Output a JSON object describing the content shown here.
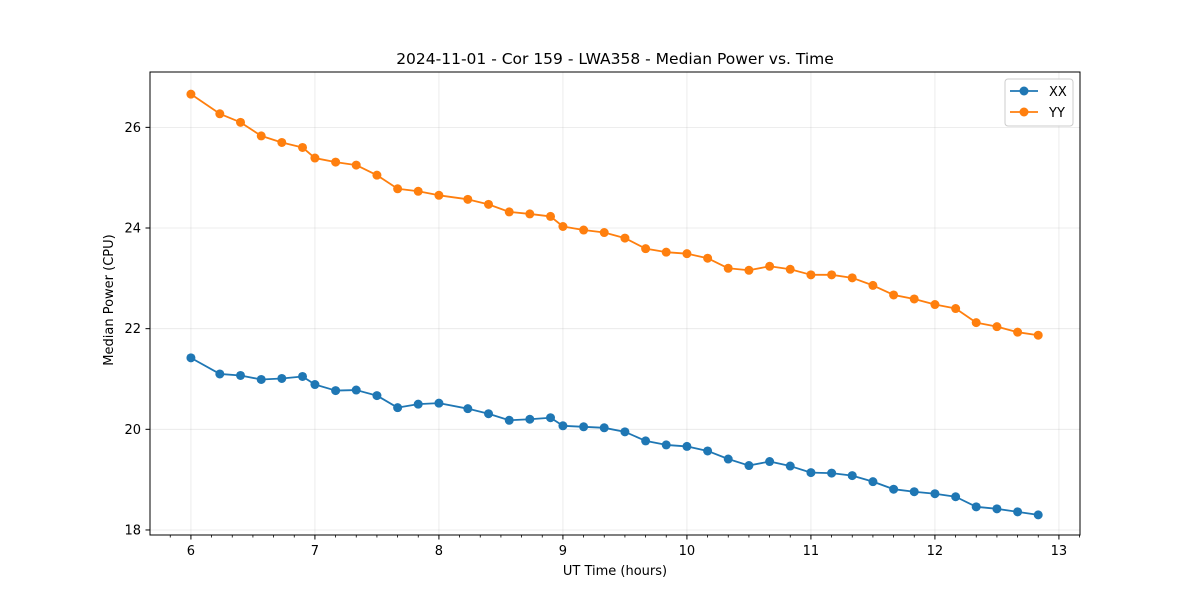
{
  "chart_data": {
    "type": "line",
    "title": "2024-11-01 - Cor 159 - LWA358 - Median Power vs. Time",
    "xlabel": "UT Time (hours)",
    "ylabel": "Median Power (CPU)",
    "xlim": [
      5.67,
      13.17
    ],
    "ylim": [
      17.9,
      27.1
    ],
    "xticks": [
      6,
      7,
      8,
      9,
      10,
      11,
      12,
      13
    ],
    "xtick_labels": [
      "6",
      "7",
      "8",
      "9",
      "10",
      "11",
      "12",
      "13"
    ],
    "yticks": [
      18,
      20,
      22,
      24,
      26
    ],
    "ytick_labels": [
      "18",
      "20",
      "22",
      "24",
      "26"
    ],
    "grid": true,
    "legend_position": "top-right",
    "x": [
      6.0,
      6.233,
      6.4,
      6.567,
      6.733,
      6.9,
      7.0,
      7.167,
      7.333,
      7.5,
      7.667,
      7.833,
      8.0,
      8.233,
      8.4,
      8.567,
      8.733,
      8.9,
      9.0,
      9.167,
      9.333,
      9.5,
      9.667,
      9.833,
      10.0,
      10.167,
      10.333,
      10.5,
      10.667,
      10.833,
      11.0,
      11.167,
      11.333,
      11.5,
      11.667,
      11.833,
      12.0,
      12.167,
      12.333,
      12.5,
      12.667,
      12.833
    ],
    "series": [
      {
        "name": "XX",
        "color": "#1f77b4",
        "values": [
          21.42,
          21.1,
          21.07,
          20.99,
          21.01,
          21.05,
          20.89,
          20.77,
          20.78,
          20.67,
          20.43,
          20.5,
          20.52,
          20.41,
          20.31,
          20.18,
          20.2,
          20.23,
          20.07,
          20.05,
          20.03,
          19.95,
          19.77,
          19.69,
          19.66,
          19.57,
          19.41,
          19.28,
          19.36,
          19.27,
          19.14,
          19.13,
          19.08,
          18.96,
          18.81,
          18.76,
          18.72,
          18.66,
          18.46,
          18.42,
          18.36,
          18.3
        ]
      },
      {
        "name": "YY",
        "color": "#ff7f0e",
        "values": [
          26.66,
          26.27,
          26.1,
          25.83,
          25.7,
          25.6,
          25.39,
          25.31,
          25.25,
          25.05,
          24.78,
          24.73,
          24.65,
          24.57,
          24.47,
          24.32,
          24.28,
          24.23,
          24.03,
          23.96,
          23.91,
          23.8,
          23.59,
          23.52,
          23.49,
          23.4,
          23.2,
          23.16,
          23.24,
          23.18,
          23.07,
          23.07,
          23.01,
          22.86,
          22.67,
          22.59,
          22.48,
          22.4,
          22.12,
          22.04,
          21.93,
          21.87
        ]
      }
    ]
  }
}
